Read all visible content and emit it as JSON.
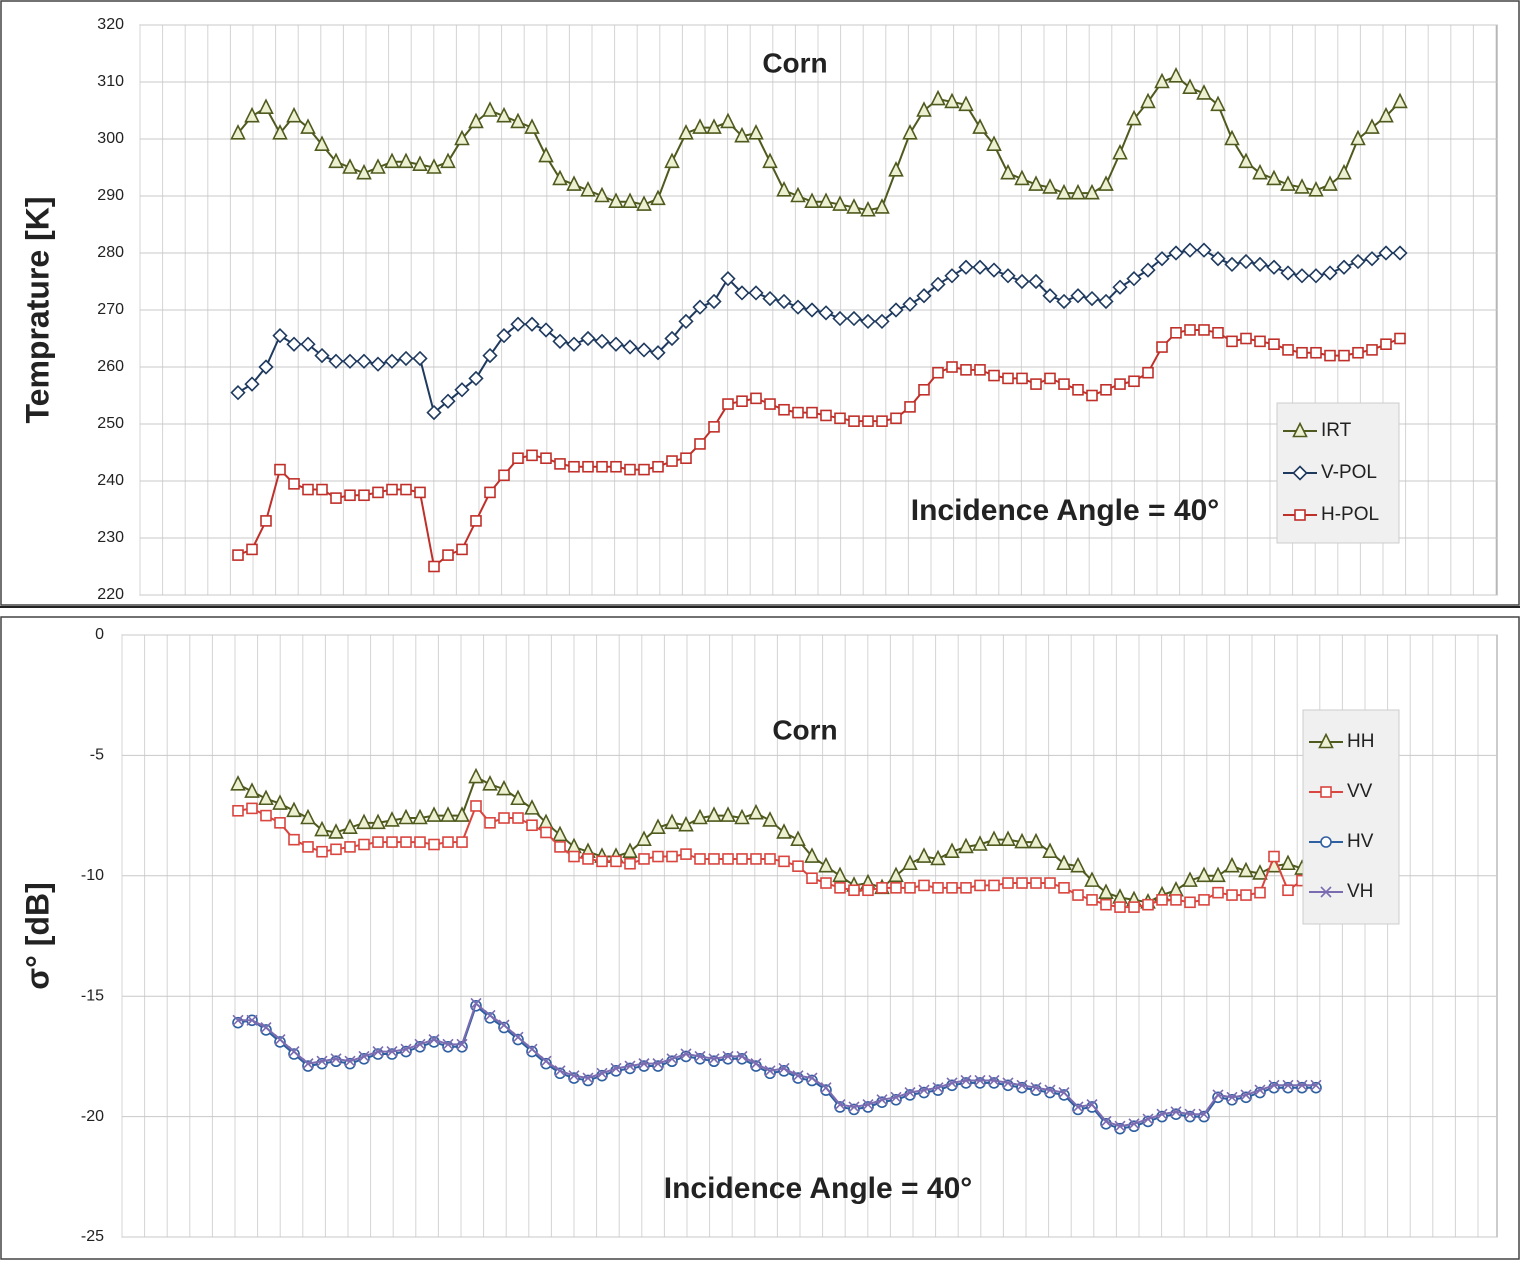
{
  "chart_data": [
    {
      "type": "line",
      "title": "Corn",
      "y_label": "Temprature [K]",
      "annotation": "Incidence Angle = 40°",
      "categories": [
        null,
        null,
        null,
        null,
        null,
        null,
        null,
        null,
        null,
        null,
        null,
        null,
        null,
        null,
        null,
        null,
        null,
        null,
        null,
        null,
        null,
        null,
        null,
        null,
        null,
        null,
        null,
        null,
        null,
        null,
        null,
        null,
        null,
        null,
        null,
        null,
        null,
        null,
        null,
        null,
        null,
        null,
        null,
        null,
        null,
        null,
        null,
        null,
        null,
        null,
        null,
        null,
        null,
        null,
        null,
        null,
        null,
        null,
        null,
        null,
        null,
        null,
        null,
        null,
        null,
        null,
        null,
        null,
        null,
        null,
        null,
        null,
        null,
        null,
        null,
        null,
        null,
        null,
        null,
        null,
        null,
        null,
        null,
        null
      ],
      "ylim": [
        220,
        320
      ],
      "yticks": [
        220,
        230,
        240,
        250,
        260,
        270,
        280,
        290,
        300,
        310,
        320
      ],
      "grid": true,
      "legend": "lower right",
      "series": [
        {
          "name": "IRT",
          "color": "#4f5a1e",
          "marker": "triangle",
          "marker_fill": "#eef0d2",
          "values": [
            301,
            304,
            305.5,
            301,
            304,
            302,
            299,
            296,
            295,
            294,
            295,
            296,
            296,
            295.5,
            295,
            296,
            300,
            303,
            305,
            304,
            303,
            302,
            297,
            293,
            292,
            291,
            290,
            289,
            289,
            288.5,
            289.5,
            296,
            301,
            302,
            302,
            303,
            300.5,
            301,
            296,
            291,
            290,
            289,
            289,
            288.5,
            288,
            287.5,
            288,
            294.5,
            301,
            305,
            307,
            306.5,
            306,
            302,
            299,
            294,
            293,
            292,
            291.5,
            290.5,
            290.5,
            290.5,
            292,
            297.5,
            303.5,
            306.5,
            310,
            311,
            309,
            308,
            306,
            300,
            296,
            294,
            293,
            292,
            291.5,
            291,
            292,
            294,
            300,
            302,
            304,
            306.5
          ]
        },
        {
          "name": "V-POL",
          "color": "#1f3a5f",
          "marker": "diamond",
          "marker_fill": "#ffffff",
          "values": [
            255.5,
            257,
            260,
            265.5,
            264,
            264,
            262,
            261,
            261,
            261,
            260.5,
            261,
            261.5,
            261.5,
            252,
            254,
            256,
            258,
            262,
            265.5,
            267.5,
            267.5,
            266.5,
            264.5,
            264,
            265,
            264.5,
            264,
            263.5,
            263,
            262.5,
            265,
            268,
            270.5,
            271.5,
            275.5,
            273,
            273,
            272,
            271.5,
            270.5,
            270,
            269.5,
            268.5,
            268.5,
            268,
            268,
            270,
            271,
            272.5,
            274.5,
            276,
            277.5,
            277.5,
            277,
            276,
            275,
            275,
            272.5,
            271.5,
            272.5,
            272,
            271.5,
            274,
            275.5,
            277,
            279,
            280,
            280.5,
            280.5,
            279,
            278,
            278.5,
            278,
            277.5,
            276.5,
            276,
            276,
            276.5,
            277.5,
            278.5,
            279,
            280,
            280
          ]
        },
        {
          "name": "H-POL",
          "color": "#c0302a",
          "marker": "square",
          "marker_fill": "#ffffff",
          "values": [
            227,
            228,
            233,
            242,
            239.5,
            238.5,
            238.5,
            237,
            237.5,
            237.5,
            238,
            238.5,
            238.5,
            238,
            225,
            227,
            228,
            233,
            238,
            241,
            244,
            244.5,
            244,
            243,
            242.5,
            242.5,
            242.5,
            242.5,
            242,
            242,
            242.5,
            243.5,
            244,
            246.5,
            249.5,
            253.5,
            254,
            254.5,
            253.5,
            252.5,
            252,
            252,
            251.5,
            251,
            250.5,
            250.5,
            250.5,
            251,
            253,
            256,
            259,
            260,
            259.5,
            259.5,
            258.5,
            258,
            258,
            257,
            258,
            257,
            256,
            255,
            256,
            257,
            257.5,
            259,
            263.5,
            266,
            266.5,
            266.5,
            266,
            264.5,
            265,
            264.5,
            264,
            263,
            262.5,
            262.5,
            262,
            262,
            262.5,
            263,
            264,
            265
          ]
        }
      ]
    },
    {
      "type": "line",
      "title": "Corn",
      "y_label": "σ° [dB]",
      "annotation": "Incidence Angle = 40°",
      "categories": [
        null,
        null,
        null,
        null,
        null,
        null,
        null,
        null,
        null,
        null,
        null,
        null,
        null,
        null,
        null,
        null,
        null,
        null,
        null,
        null,
        null,
        null,
        null,
        null,
        null,
        null,
        null,
        null,
        null,
        null,
        null,
        null,
        null,
        null,
        null,
        null,
        null,
        null,
        null,
        null,
        null,
        null,
        null,
        null,
        null,
        null,
        null,
        null,
        null,
        null,
        null,
        null,
        null,
        null,
        null,
        null,
        null,
        null,
        null,
        null,
        null,
        null,
        null,
        null,
        null,
        null,
        null,
        null,
        null,
        null,
        null,
        null,
        null,
        null,
        null,
        null,
        null,
        null
      ],
      "ylim": [
        -25,
        0
      ],
      "yticks": [
        -25,
        -20,
        -15,
        -10,
        -5,
        0
      ],
      "grid": true,
      "legend": "upper right",
      "series": [
        {
          "name": "HH",
          "color": "#4f5a1e",
          "marker": "triangle",
          "marker_fill": "#eef0d2",
          "values": [
            -6.2,
            -6.5,
            -6.8,
            -7.0,
            -7.3,
            -7.6,
            -8.1,
            -8.2,
            -8.0,
            -7.8,
            -7.8,
            -7.7,
            -7.6,
            -7.6,
            -7.5,
            -7.5,
            -7.5,
            -5.9,
            -6.2,
            -6.4,
            -6.8,
            -7.2,
            -7.8,
            -8.3,
            -8.8,
            -9.0,
            -9.2,
            -9.2,
            -9.0,
            -8.5,
            -8.0,
            -7.8,
            -7.9,
            -7.6,
            -7.5,
            -7.5,
            -7.6,
            -7.4,
            -7.7,
            -8.2,
            -8.5,
            -9.2,
            -9.6,
            -10.0,
            -10.4,
            -10.3,
            -10.5,
            -10.0,
            -9.5,
            -9.2,
            -9.3,
            -9.0,
            -8.8,
            -8.7,
            -8.5,
            -8.5,
            -8.6,
            -8.6,
            -9.0,
            -9.5,
            -9.6,
            -10.2,
            -10.7,
            -10.9,
            -11.0,
            -11.1,
            -10.8,
            -10.6,
            -10.2,
            -10.0,
            -10.0,
            -9.6,
            -9.8,
            -9.9,
            -9.6,
            -9.5,
            -9.7,
            -9.2
          ]
        },
        {
          "name": "VV",
          "color": "#d9453f",
          "marker": "square",
          "marker_fill": "#ffffff",
          "values": [
            -7.3,
            -7.2,
            -7.5,
            -7.8,
            -8.5,
            -8.8,
            -9.0,
            -8.9,
            -8.8,
            -8.7,
            -8.6,
            -8.6,
            -8.6,
            -8.6,
            -8.7,
            -8.6,
            -8.6,
            -7.1,
            -7.8,
            -7.6,
            -7.6,
            -7.9,
            -8.2,
            -8.8,
            -9.2,
            -9.3,
            -9.4,
            -9.4,
            -9.5,
            -9.3,
            -9.2,
            -9.2,
            -9.1,
            -9.3,
            -9.3,
            -9.3,
            -9.3,
            -9.3,
            -9.3,
            -9.4,
            -9.6,
            -10.1,
            -10.3,
            -10.5,
            -10.6,
            -10.6,
            -10.5,
            -10.5,
            -10.5,
            -10.4,
            -10.5,
            -10.5,
            -10.5,
            -10.4,
            -10.4,
            -10.3,
            -10.3,
            -10.3,
            -10.3,
            -10.5,
            -10.8,
            -11.0,
            -11.2,
            -11.3,
            -11.3,
            -11.2,
            -11.0,
            -11.0,
            -11.1,
            -11.0,
            -10.7,
            -10.8,
            -10.8,
            -10.7,
            -9.2,
            -10.6,
            -10.2,
            -10.2
          ]
        },
        {
          "name": "HV",
          "color": "#2e5fa0",
          "marker": "circle",
          "marker_fill": "#ffffff",
          "values": [
            -16.1,
            -16.0,
            -16.4,
            -16.9,
            -17.4,
            -17.9,
            -17.8,
            -17.7,
            -17.8,
            -17.6,
            -17.4,
            -17.4,
            -17.3,
            -17.1,
            -16.9,
            -17.1,
            -17.1,
            -15.4,
            -15.9,
            -16.3,
            -16.8,
            -17.3,
            -17.8,
            -18.2,
            -18.4,
            -18.5,
            -18.3,
            -18.1,
            -18.0,
            -17.9,
            -17.9,
            -17.7,
            -17.5,
            -17.6,
            -17.7,
            -17.6,
            -17.6,
            -17.9,
            -18.2,
            -18.1,
            -18.4,
            -18.5,
            -18.9,
            -19.6,
            -19.7,
            -19.6,
            -19.4,
            -19.3,
            -19.1,
            -19.0,
            -18.9,
            -18.7,
            -18.6,
            -18.6,
            -18.6,
            -18.7,
            -18.8,
            -18.9,
            -19.0,
            -19.1,
            -19.7,
            -19.6,
            -20.3,
            -20.5,
            -20.4,
            -20.2,
            -20.0,
            -19.9,
            -20.0,
            -20.0,
            -19.2,
            -19.3,
            -19.2,
            -19.0,
            -18.8,
            -18.8,
            -18.8,
            -18.8
          ]
        },
        {
          "name": "VH",
          "color": "#7b6bb0",
          "marker": "x",
          "marker_fill": "none",
          "values": [
            -16.0,
            -16.0,
            -16.3,
            -16.8,
            -17.3,
            -17.8,
            -17.7,
            -17.6,
            -17.7,
            -17.5,
            -17.3,
            -17.3,
            -17.2,
            -17.0,
            -16.8,
            -17.0,
            -17.0,
            -15.3,
            -15.8,
            -16.2,
            -16.7,
            -17.2,
            -17.7,
            -18.1,
            -18.3,
            -18.4,
            -18.2,
            -18.0,
            -17.9,
            -17.8,
            -17.8,
            -17.6,
            -17.4,
            -17.5,
            -17.6,
            -17.5,
            -17.5,
            -17.8,
            -18.1,
            -18.0,
            -18.3,
            -18.4,
            -18.8,
            -19.5,
            -19.6,
            -19.5,
            -19.3,
            -19.2,
            -19.0,
            -18.9,
            -18.8,
            -18.6,
            -18.5,
            -18.5,
            -18.5,
            -18.6,
            -18.7,
            -18.8,
            -18.9,
            -19.0,
            -19.6,
            -19.5,
            -20.2,
            -20.4,
            -20.3,
            -20.1,
            -19.9,
            -19.8,
            -19.9,
            -19.9,
            -19.1,
            -19.2,
            -19.1,
            -18.9,
            -18.7,
            -18.7,
            -18.7,
            -18.7
          ]
        }
      ]
    }
  ]
}
